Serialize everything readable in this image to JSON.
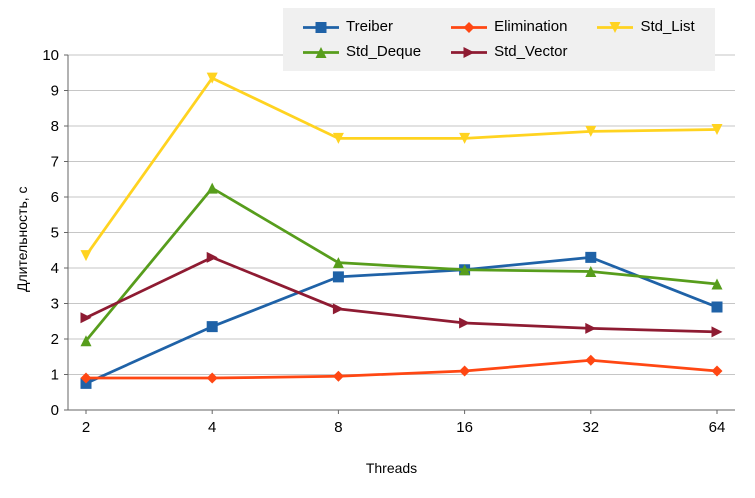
{
  "chart_data": {
    "type": "line",
    "title": "",
    "xlabel": "Threads",
    "ylabel": "Длительность, с",
    "x_categories": [
      "2",
      "4",
      "8",
      "16",
      "32",
      "64"
    ],
    "ylim": [
      0,
      10
    ],
    "y_ticks": [
      0,
      1,
      2,
      3,
      4,
      5,
      6,
      7,
      8,
      9,
      10
    ],
    "grid": "horizontal",
    "legend_position": "top-center",
    "series": [
      {
        "name": "Treiber",
        "color": "#1F62A7",
        "marker": "square",
        "values": [
          0.75,
          2.35,
          3.75,
          3.95,
          4.3,
          2.9
        ]
      },
      {
        "name": "Elimination",
        "color": "#FF4713",
        "marker": "diamond",
        "values": [
          0.9,
          0.9,
          0.95,
          1.1,
          1.4,
          1.1
        ]
      },
      {
        "name": "Std_List",
        "color": "#FFD320",
        "marker": "triangle-down",
        "values": [
          4.35,
          9.35,
          7.65,
          7.65,
          7.85,
          7.9
        ]
      },
      {
        "name": "Std_Deque",
        "color": "#579D1C",
        "marker": "triangle-up",
        "values": [
          1.95,
          6.25,
          4.15,
          3.95,
          3.9,
          3.55
        ]
      },
      {
        "name": "Std_Vector",
        "color": "#8E1B32",
        "marker": "triangle-right",
        "values": [
          2.6,
          4.3,
          2.85,
          2.45,
          2.3,
          2.2
        ]
      }
    ],
    "colors": {
      "grid": "#c6c6c6",
      "axis": "#666666",
      "text": "#000000",
      "legend_bg": "#f0f0f0",
      "background": "#ffffff"
    }
  }
}
